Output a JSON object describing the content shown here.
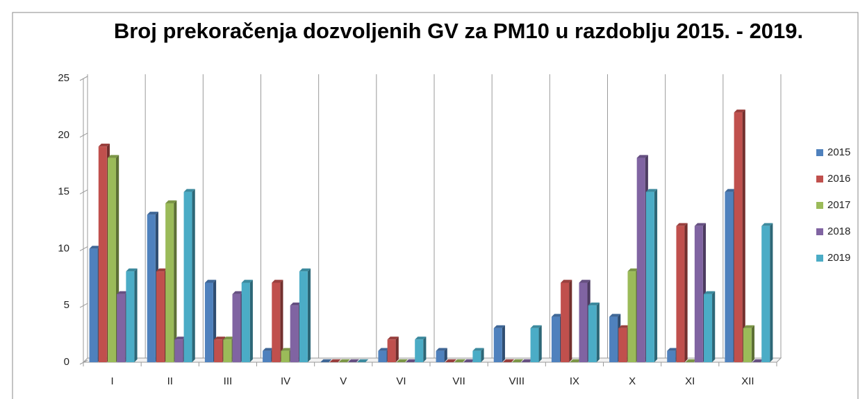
{
  "chart_data": {
    "type": "bar3d",
    "title": "Broj prekoračenja dozvoljenih GV za PM10 u razdoblju 2015. - 2019.",
    "categories": [
      "I",
      "II",
      "III",
      "IV",
      "V",
      "VI",
      "VII",
      "VIII",
      "IX",
      "X",
      "XI",
      "XII"
    ],
    "series": [
      {
        "name": "2015",
        "color": "#4f81bd",
        "values": [
          10,
          13,
          7,
          1,
          0,
          1,
          1,
          3,
          4,
          4,
          1,
          15
        ]
      },
      {
        "name": "2016",
        "color": "#c0504d",
        "values": [
          19,
          8,
          2,
          7,
          0,
          2,
          0,
          0,
          7,
          3,
          12,
          22
        ]
      },
      {
        "name": "2017",
        "color": "#9bbb59",
        "values": [
          18,
          14,
          2,
          1,
          0,
          0,
          0,
          0,
          0,
          8,
          0,
          3
        ]
      },
      {
        "name": "2018",
        "color": "#8064a2",
        "values": [
          6,
          2,
          6,
          5,
          0,
          0,
          0,
          0,
          7,
          18,
          12,
          0
        ]
      },
      {
        "name": "2019",
        "color": "#4bacc6",
        "values": [
          8,
          15,
          7,
          8,
          0,
          2,
          1,
          3,
          5,
          15,
          6,
          12
        ]
      }
    ],
    "ylim": [
      0,
      25
    ],
    "yticks": [
      0,
      5,
      10,
      15,
      20,
      25
    ],
    "grid": true,
    "legend": "right"
  }
}
